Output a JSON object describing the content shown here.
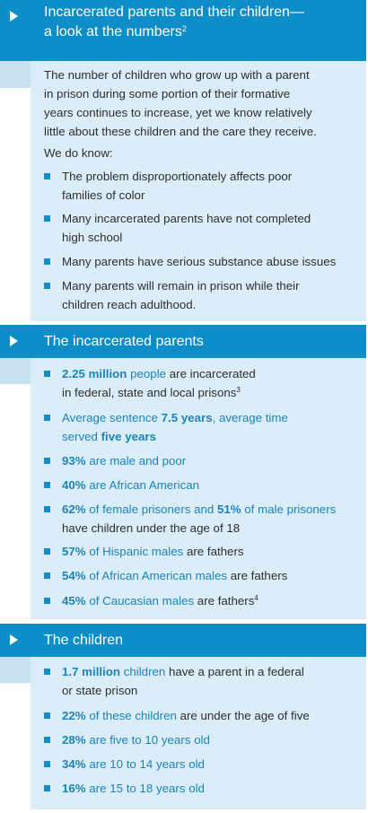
{
  "sections": [
    {
      "title_line1": "Incarcerated parents and their children—",
      "title_line2": "a look at the numbers",
      "title_sup": "2",
      "intro_line1": "The number of children who grow up with a parent",
      "intro_line2": "in prison during some portion of their formative",
      "intro_line3": "years continues to increase, yet we know relatively",
      "intro_line4": "little about these children and the care they receive.",
      "we_know": "We do know:",
      "items": [
        {
          "line1": "The problem disproportionately affects poor",
          "line2": "families of color"
        },
        {
          "line1": "Many incarcerated parents have not completed",
          "line2": "high school"
        },
        {
          "line1": "Many parents have serious substance abuse issues"
        },
        {
          "line1": "Many parents will remain in prison while their",
          "line2": "children reach adulthood."
        }
      ]
    },
    {
      "title": "The incarcerated parents",
      "items": [
        {
          "a": "2.25 million",
          "b": " people",
          "c": " are incarcerated",
          "line2": "in federal, state and local prisons",
          "sup": "3"
        },
        {
          "a": "Average sentence ",
          "b": "7.5 years",
          "c": ", average time",
          "line2a": "served ",
          "line2b": "five years"
        },
        {
          "a": "93%",
          "b": " are male and poor"
        },
        {
          "a": "40%",
          "b": " are African American"
        },
        {
          "a": "62%",
          "b": " of female prisoners and ",
          "c": "51%",
          "d": " of male prisoners",
          "line2": "have children under the age of 18"
        },
        {
          "a": "57%",
          "b": " of Hispanic males",
          "c": " are fathers"
        },
        {
          "a": "54%",
          "b": " of African American males",
          "c": " are fathers"
        },
        {
          "a": "45%",
          "b": " of Caucasian males",
          "c": " are fathers",
          "sup": "4"
        }
      ]
    },
    {
      "title": "The children",
      "items": [
        {
          "a": "1.7 million",
          "b": " children",
          "c": " have a parent in a federal",
          "line2": "or state prison"
        },
        {
          "a": "22%",
          "b": " of these children",
          "c": " are under the age of five"
        },
        {
          "a": "28%",
          "b": " are five to 10 years old"
        },
        {
          "a": "34%",
          "b": " are 10 to 14 years old"
        },
        {
          "a": "16%",
          "b": " are 15 to 18 years old"
        }
      ]
    }
  ],
  "colors": {
    "band": "#0d8ec8",
    "panel": "#dbedf8",
    "tab": "#c7e1ef",
    "accent": "#1a84bd"
  }
}
